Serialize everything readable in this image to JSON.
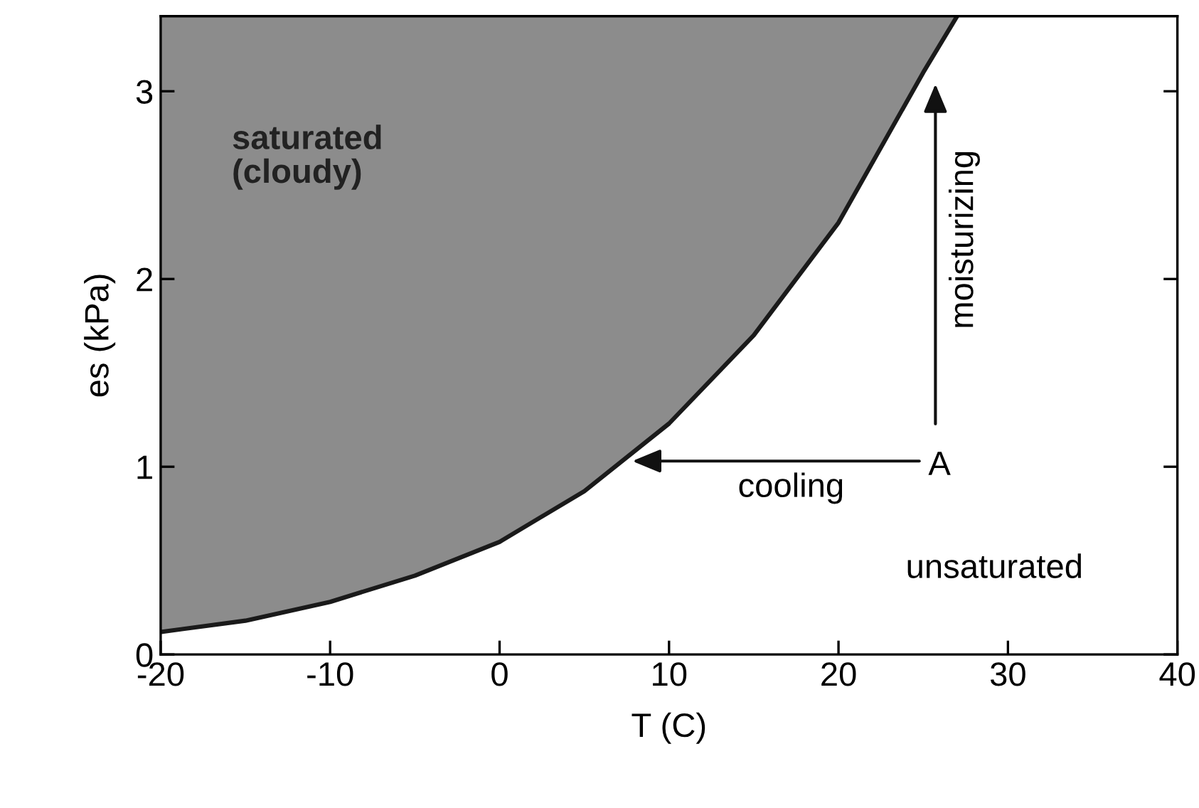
{
  "chart_data": {
    "type": "line",
    "xlabel": "T (C)",
    "ylabel": "es (kPa)",
    "x": [
      -20,
      -15,
      -10,
      -5,
      0,
      5,
      10,
      15,
      20,
      25,
      27
    ],
    "series": [
      {
        "color": "#1a1a1a",
        "values": [
          0.12,
          0.18,
          0.28,
          0.42,
          0.6,
          0.87,
          1.23,
          1.7,
          2.3,
          3.1,
          3.4
        ],
        "lower": [
          0.12,
          0.18,
          0.28,
          0.42,
          0.6,
          0.87,
          1.23,
          1.7,
          2.3,
          3.1,
          3.4
        ],
        "upper": [
          3.4,
          3.4,
          3.4,
          3.4,
          3.4,
          3.4,
          3.4,
          3.4,
          3.4,
          3.4,
          3.4
        ]
      }
    ],
    "xlim": [
      -20,
      40
    ],
    "ylim": [
      0,
      3.4
    ],
    "xticks": [
      -20,
      -10,
      0,
      10,
      20,
      30,
      40
    ],
    "yticks": [
      0,
      1,
      2,
      3
    ],
    "grid": false,
    "legend": false,
    "marker": "none",
    "line_style": "solid",
    "annotations": [
      "saturated\n(cloudy)",
      "unsaturated",
      "A",
      "cooling",
      "moisturizing"
    ]
  }
}
